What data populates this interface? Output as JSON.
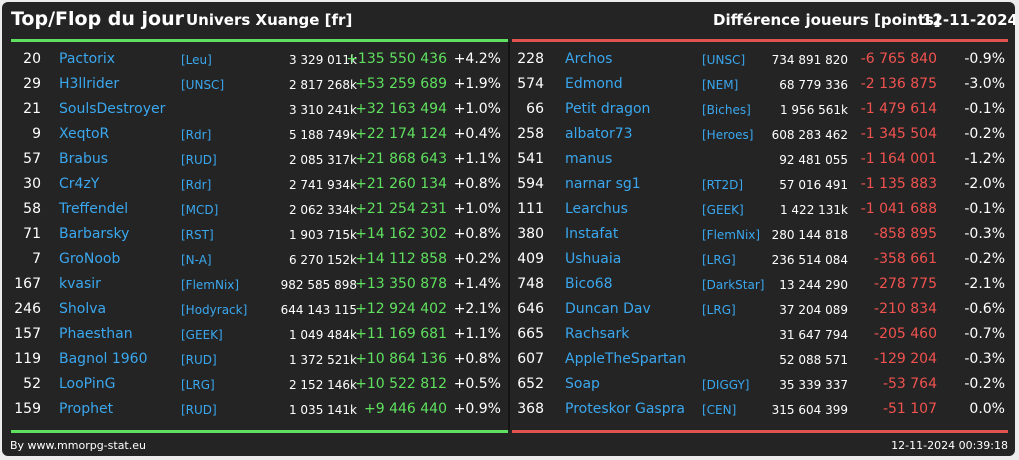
{
  "header": {
    "title": "Top/Flop du jour",
    "universe": "Univers Xuange [fr]",
    "difference": "Différence joueurs [points]",
    "date": "12-11-2024"
  },
  "colors": {
    "positive": "#5fe05f",
    "negative": "#f0524f",
    "name": "#3aa7ee",
    "background": "#242424"
  },
  "top": [
    {
      "rank": "20",
      "name": "Pactorix",
      "alliance": "[Leu]",
      "points": "3 329 011k",
      "diff": "+135 550 436",
      "pct": "+4.2%"
    },
    {
      "rank": "29",
      "name": "H3llrider",
      "alliance": "[UNSC]",
      "points": "2 817 268k",
      "diff": "+53 259 689",
      "pct": "+1.9%"
    },
    {
      "rank": "21",
      "name": "SoulsDestroyer",
      "alliance": "",
      "points": "3 310 241k",
      "diff": "+32 163 494",
      "pct": "+1.0%"
    },
    {
      "rank": "9",
      "name": "XeqtoR",
      "alliance": "[Rdr]",
      "points": "5 188 749k",
      "diff": "+22 174 124",
      "pct": "+0.4%"
    },
    {
      "rank": "57",
      "name": "Brabus",
      "alliance": "[RUD]",
      "points": "2 085 317k",
      "diff": "+21 868 643",
      "pct": "+1.1%"
    },
    {
      "rank": "30",
      "name": "Cr4zY",
      "alliance": "[Rdr]",
      "points": "2 741 934k",
      "diff": "+21 260 134",
      "pct": "+0.8%"
    },
    {
      "rank": "58",
      "name": "Treffendel",
      "alliance": "[MCD]",
      "points": "2 062 334k",
      "diff": "+21 254 231",
      "pct": "+1.0%"
    },
    {
      "rank": "71",
      "name": "Barbarsky",
      "alliance": "[RST]",
      "points": "1 903 715k",
      "diff": "+14 162 302",
      "pct": "+0.8%"
    },
    {
      "rank": "7",
      "name": "GroNoob",
      "alliance": "[N-A]",
      "points": "6 270 152k",
      "diff": "+14 112 858",
      "pct": "+0.2%"
    },
    {
      "rank": "167",
      "name": "kvasir",
      "alliance": "[FlemNix]",
      "points": "982 585 898",
      "diff": "+13 350 878",
      "pct": "+1.4%"
    },
    {
      "rank": "246",
      "name": "Sholva",
      "alliance": "[Hodyrack]",
      "points": "644 143 115",
      "diff": "+12 924 402",
      "pct": "+2.1%"
    },
    {
      "rank": "157",
      "name": "Phaesthan",
      "alliance": "[GEEK]",
      "points": "1 049 484k",
      "diff": "+11 169 681",
      "pct": "+1.1%"
    },
    {
      "rank": "119",
      "name": "Bagnol 1960",
      "alliance": "[RUD]",
      "points": "1 372 521k",
      "diff": "+10 864 136",
      "pct": "+0.8%"
    },
    {
      "rank": "52",
      "name": "LooPinG",
      "alliance": "[LRG]",
      "points": "2 152 146k",
      "diff": "+10 522 812",
      "pct": "+0.5%"
    },
    {
      "rank": "159",
      "name": "Prophet",
      "alliance": "[RUD]",
      "points": "1 035 141k",
      "diff": "+9 446 440",
      "pct": "+0.9%"
    }
  ],
  "flop": [
    {
      "rank": "228",
      "name": "Archos",
      "alliance": "[UNSC]",
      "points": "734 891 820",
      "diff": "-6 765 840",
      "pct": "-0.9%"
    },
    {
      "rank": "574",
      "name": "Edmond",
      "alliance": "[NEM]",
      "points": "68 779 336",
      "diff": "-2 136 875",
      "pct": "-3.0%"
    },
    {
      "rank": "66",
      "name": "Petit dragon",
      "alliance": "[Biches]",
      "points": "1 956 561k",
      "diff": "-1 479 614",
      "pct": "-0.1%"
    },
    {
      "rank": "258",
      "name": "albator73",
      "alliance": "[Heroes]",
      "points": "608 283 462",
      "diff": "-1 345 504",
      "pct": "-0.2%"
    },
    {
      "rank": "541",
      "name": "manus",
      "alliance": "",
      "points": "92 481 055",
      "diff": "-1 164 001",
      "pct": "-1.2%"
    },
    {
      "rank": "594",
      "name": "narnar sg1",
      "alliance": "[RT2D]",
      "points": "57 016 491",
      "diff": "-1 135 883",
      "pct": "-2.0%"
    },
    {
      "rank": "111",
      "name": "Learchus",
      "alliance": "[GEEK]",
      "points": "1 422 131k",
      "diff": "-1 041 688",
      "pct": "-0.1%"
    },
    {
      "rank": "380",
      "name": "Instafat",
      "alliance": "[FlemNix]",
      "points": "280 144 818",
      "diff": "-858 895",
      "pct": "-0.3%"
    },
    {
      "rank": "409",
      "name": "Ushuaia",
      "alliance": "[LRG]",
      "points": "236 514 084",
      "diff": "-358 661",
      "pct": "-0.2%"
    },
    {
      "rank": "748",
      "name": "Bico68",
      "alliance": "[DarkStar]",
      "points": "13 244 290",
      "diff": "-278 775",
      "pct": "-2.1%"
    },
    {
      "rank": "646",
      "name": "Duncan Dav",
      "alliance": "[LRG]",
      "points": "37 204 089",
      "diff": "-210 834",
      "pct": "-0.6%"
    },
    {
      "rank": "665",
      "name": "Rachsark",
      "alliance": "",
      "points": "31 647 794",
      "diff": "-205 460",
      "pct": "-0.7%"
    },
    {
      "rank": "607",
      "name": "AppleTheSpartan",
      "alliance": "",
      "points": "52 088 571",
      "diff": "-129 204",
      "pct": "-0.3%"
    },
    {
      "rank": "652",
      "name": "Soap",
      "alliance": "[DIGGY]",
      "points": "35 339 337",
      "diff": "-53 764",
      "pct": "-0.2%"
    },
    {
      "rank": "368",
      "name": "Proteskor Gaspra",
      "alliance": "[CEN]",
      "points": "315 604 399",
      "diff": "-51 107",
      "pct": "0.0%"
    }
  ],
  "footer": {
    "credit": "By www.mmorpg-stat.eu",
    "timestamp": "12-11-2024 00:39:18"
  }
}
